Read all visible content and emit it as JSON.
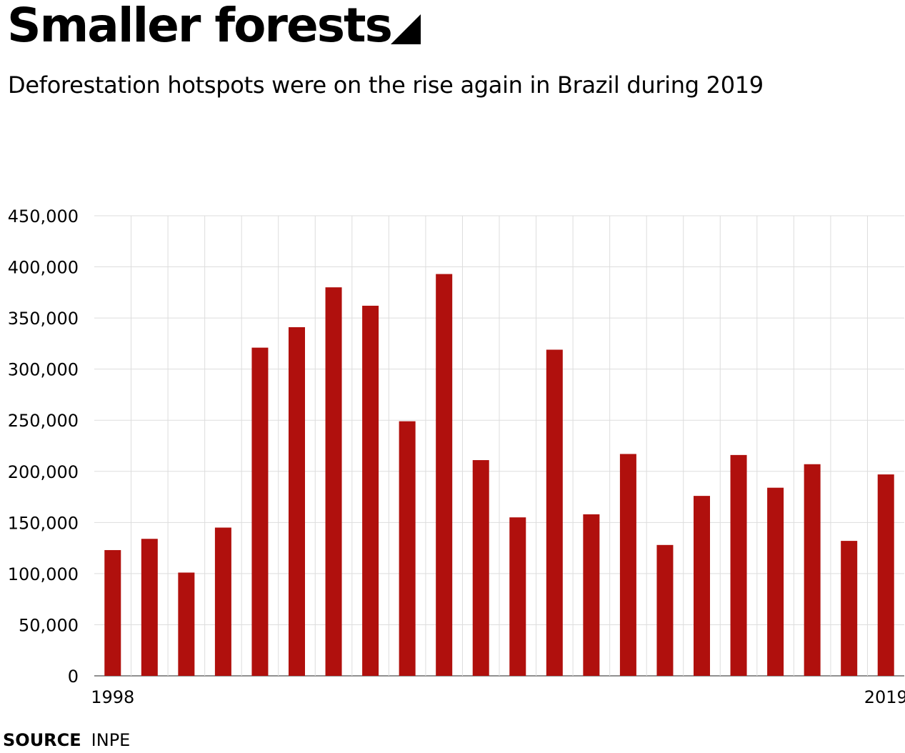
{
  "header": {
    "title": "Smaller forests",
    "subtitle": "Deforestation hotspots were on the rise again in Brazil during 2019",
    "title_icon": "corner-triangle-icon"
  },
  "footer": {
    "source_label": "SOURCE",
    "source_value": "INPE"
  },
  "colors": {
    "bar": "#b0100d",
    "grid": "#dddddd",
    "text": "#000000"
  },
  "chart_data": {
    "type": "bar",
    "categories": [
      "1998",
      "1999",
      "2000",
      "2001",
      "2002",
      "2003",
      "2004",
      "2005",
      "2006",
      "2007",
      "2008",
      "2009",
      "2010",
      "2011",
      "2012",
      "2013",
      "2014",
      "2015",
      "2016",
      "2017",
      "2018",
      "2019"
    ],
    "x_tick_labels": [
      "1998",
      "2019"
    ],
    "values": [
      123000,
      134000,
      101000,
      145000,
      321000,
      341000,
      380000,
      362000,
      249000,
      393000,
      211000,
      155000,
      319000,
      158000,
      217000,
      128000,
      176000,
      216000,
      184000,
      207000,
      132000,
      197000
    ],
    "y_ticks": [
      0,
      50000,
      100000,
      150000,
      200000,
      250000,
      300000,
      350000,
      400000,
      450000
    ],
    "y_tick_labels": [
      "0",
      "50,000",
      "100,000",
      "150,000",
      "200,000",
      "250,000",
      "300,000",
      "350,000",
      "400,000",
      "450,000"
    ],
    "ylim": [
      0,
      450000
    ],
    "grid": true,
    "legend": "none"
  }
}
